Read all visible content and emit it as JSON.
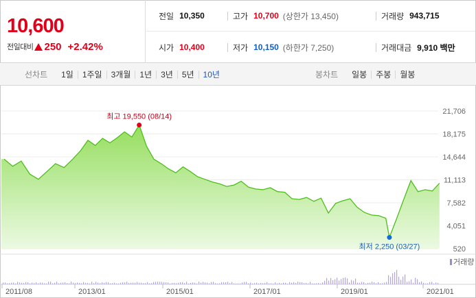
{
  "price": {
    "current": "10,600",
    "change_label": "전일대비",
    "change_value": "250",
    "change_rate": "+2.42%",
    "colors": {
      "up": "#e0001a",
      "down": "#0f5fc6"
    }
  },
  "stats": {
    "prev_close": {
      "label": "전일",
      "value": "10,350"
    },
    "high": {
      "label": "고가",
      "value": "10,700",
      "sub": "(상한가 13,450)"
    },
    "volume": {
      "label": "거래량",
      "value": "943,715"
    },
    "open": {
      "label": "시가",
      "value": "10,400"
    },
    "low": {
      "label": "저가",
      "value": "10,150",
      "sub": "(하한가 7,250)"
    },
    "amount": {
      "label": "거래대금",
      "value": "9,910 백만"
    }
  },
  "toolbar": {
    "line_chart_title": "선차트",
    "line_periods": [
      "1일",
      "1주일",
      "3개월",
      "1년",
      "3년",
      "5년",
      "10년"
    ],
    "active_period": "10년",
    "candle_chart_title": "봉차트",
    "candle_periods": [
      "일봉",
      "주봉",
      "월봉"
    ]
  },
  "chart_data": {
    "type": "area",
    "title": "",
    "xlabel": "",
    "ylabel": "",
    "y_ticks": [
      21706,
      18175,
      14644,
      11113,
      7582,
      4051,
      520
    ],
    "y_tick_labels": [
      "21,706",
      "18,175",
      "14,644",
      "11,113",
      "7,582",
      "4,051",
      "520"
    ],
    "ylim": [
      520,
      21706
    ],
    "x_tick_labels": [
      "2011/08",
      "2013/01",
      "2015/01",
      "2017/01",
      "2019/01",
      "2021/01"
    ],
    "high_annotation": "최고 19,550 (08/14)",
    "low_annotation": "최저 2,250 (03/27)",
    "volume_label": "거래량",
    "line_color": "#4fbd1c",
    "fill_color": "#9fe16e",
    "series": [
      {
        "x": [
          "2011/08",
          "2011/10",
          "2011/12",
          "2012/02",
          "2012/04",
          "2012/06",
          "2012/08",
          "2012/10",
          "2012/12",
          "2013/02",
          "2013/04",
          "2013/06",
          "2013/08",
          "2013/10",
          "2013/12",
          "2014/02",
          "2014/04",
          "2014/06",
          "2014/08",
          "2014/10",
          "2014/12",
          "2015/02",
          "2015/04",
          "2015/06",
          "2015/08",
          "2015/10",
          "2015/12",
          "2016/02",
          "2016/04",
          "2016/06",
          "2016/08",
          "2016/10",
          "2016/12",
          "2017/02",
          "2017/04",
          "2017/06",
          "2017/08",
          "2017/10",
          "2017/12",
          "2018/02",
          "2018/04",
          "2018/06",
          "2018/08",
          "2018/10",
          "2018/12",
          "2019/02",
          "2019/04",
          "2019/06",
          "2019/08",
          "2019/10",
          "2019/12",
          "2020/02",
          "2020/03",
          "2020/05",
          "2020/07",
          "2020/09",
          "2020/11",
          "2021/01",
          "2021/03",
          "2021/05"
        ],
        "values": [
          14300,
          13200,
          14000,
          12000,
          11200,
          12400,
          13600,
          13000,
          14300,
          15600,
          17200,
          16400,
          17500,
          16800,
          17600,
          18500,
          17700,
          19550,
          16300,
          14300,
          13600,
          12800,
          12200,
          13100,
          12400,
          11600,
          11200,
          10800,
          10500,
          10100,
          10300,
          10900,
          10000,
          9700,
          9600,
          9900,
          9300,
          9200,
          8200,
          8100,
          8400,
          7800,
          8300,
          6000,
          7500,
          7900,
          8200,
          6900,
          6100,
          5700,
          5600,
          5200,
          2250,
          5100,
          8100,
          11000,
          9300,
          9600,
          9400,
          10600
        ]
      }
    ]
  }
}
